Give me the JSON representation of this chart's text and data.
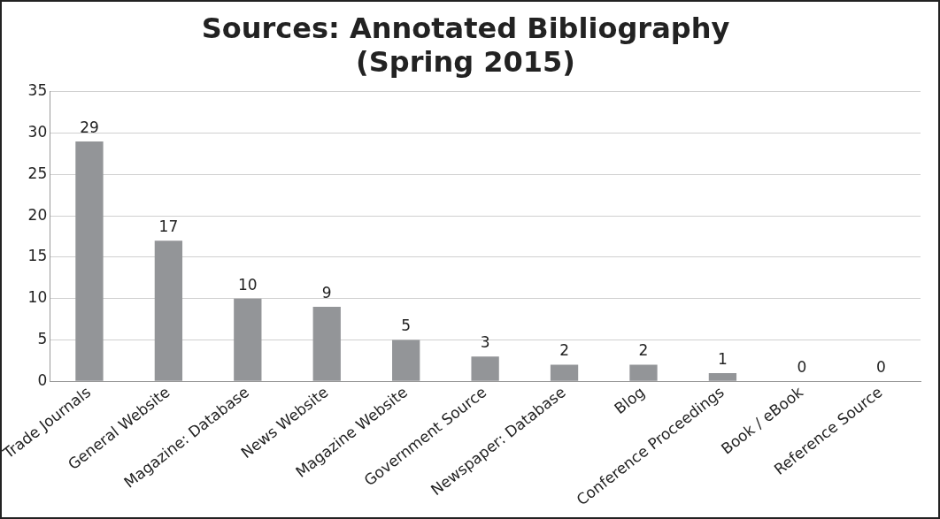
{
  "chart_data": {
    "type": "bar",
    "title": "Sources: Annotated Bibliography\n(Spring 2015)",
    "categories": [
      "Trade Journals",
      "General Website",
      "Magazine: Database",
      "News Website",
      "Magazine Website",
      "Government Source",
      "Newspaper: Database",
      "Blog",
      "Conference Proceedings",
      "Book / eBook",
      "Reference Source"
    ],
    "values": [
      29,
      17,
      10,
      9,
      5,
      3,
      2,
      2,
      1,
      0,
      0
    ],
    "color": "#939598",
    "ylim": [
      0,
      35
    ],
    "yticks": [
      0,
      5,
      10,
      15,
      20,
      25,
      30,
      35
    ],
    "grid": "y",
    "data_labels": true,
    "legend": false
  }
}
